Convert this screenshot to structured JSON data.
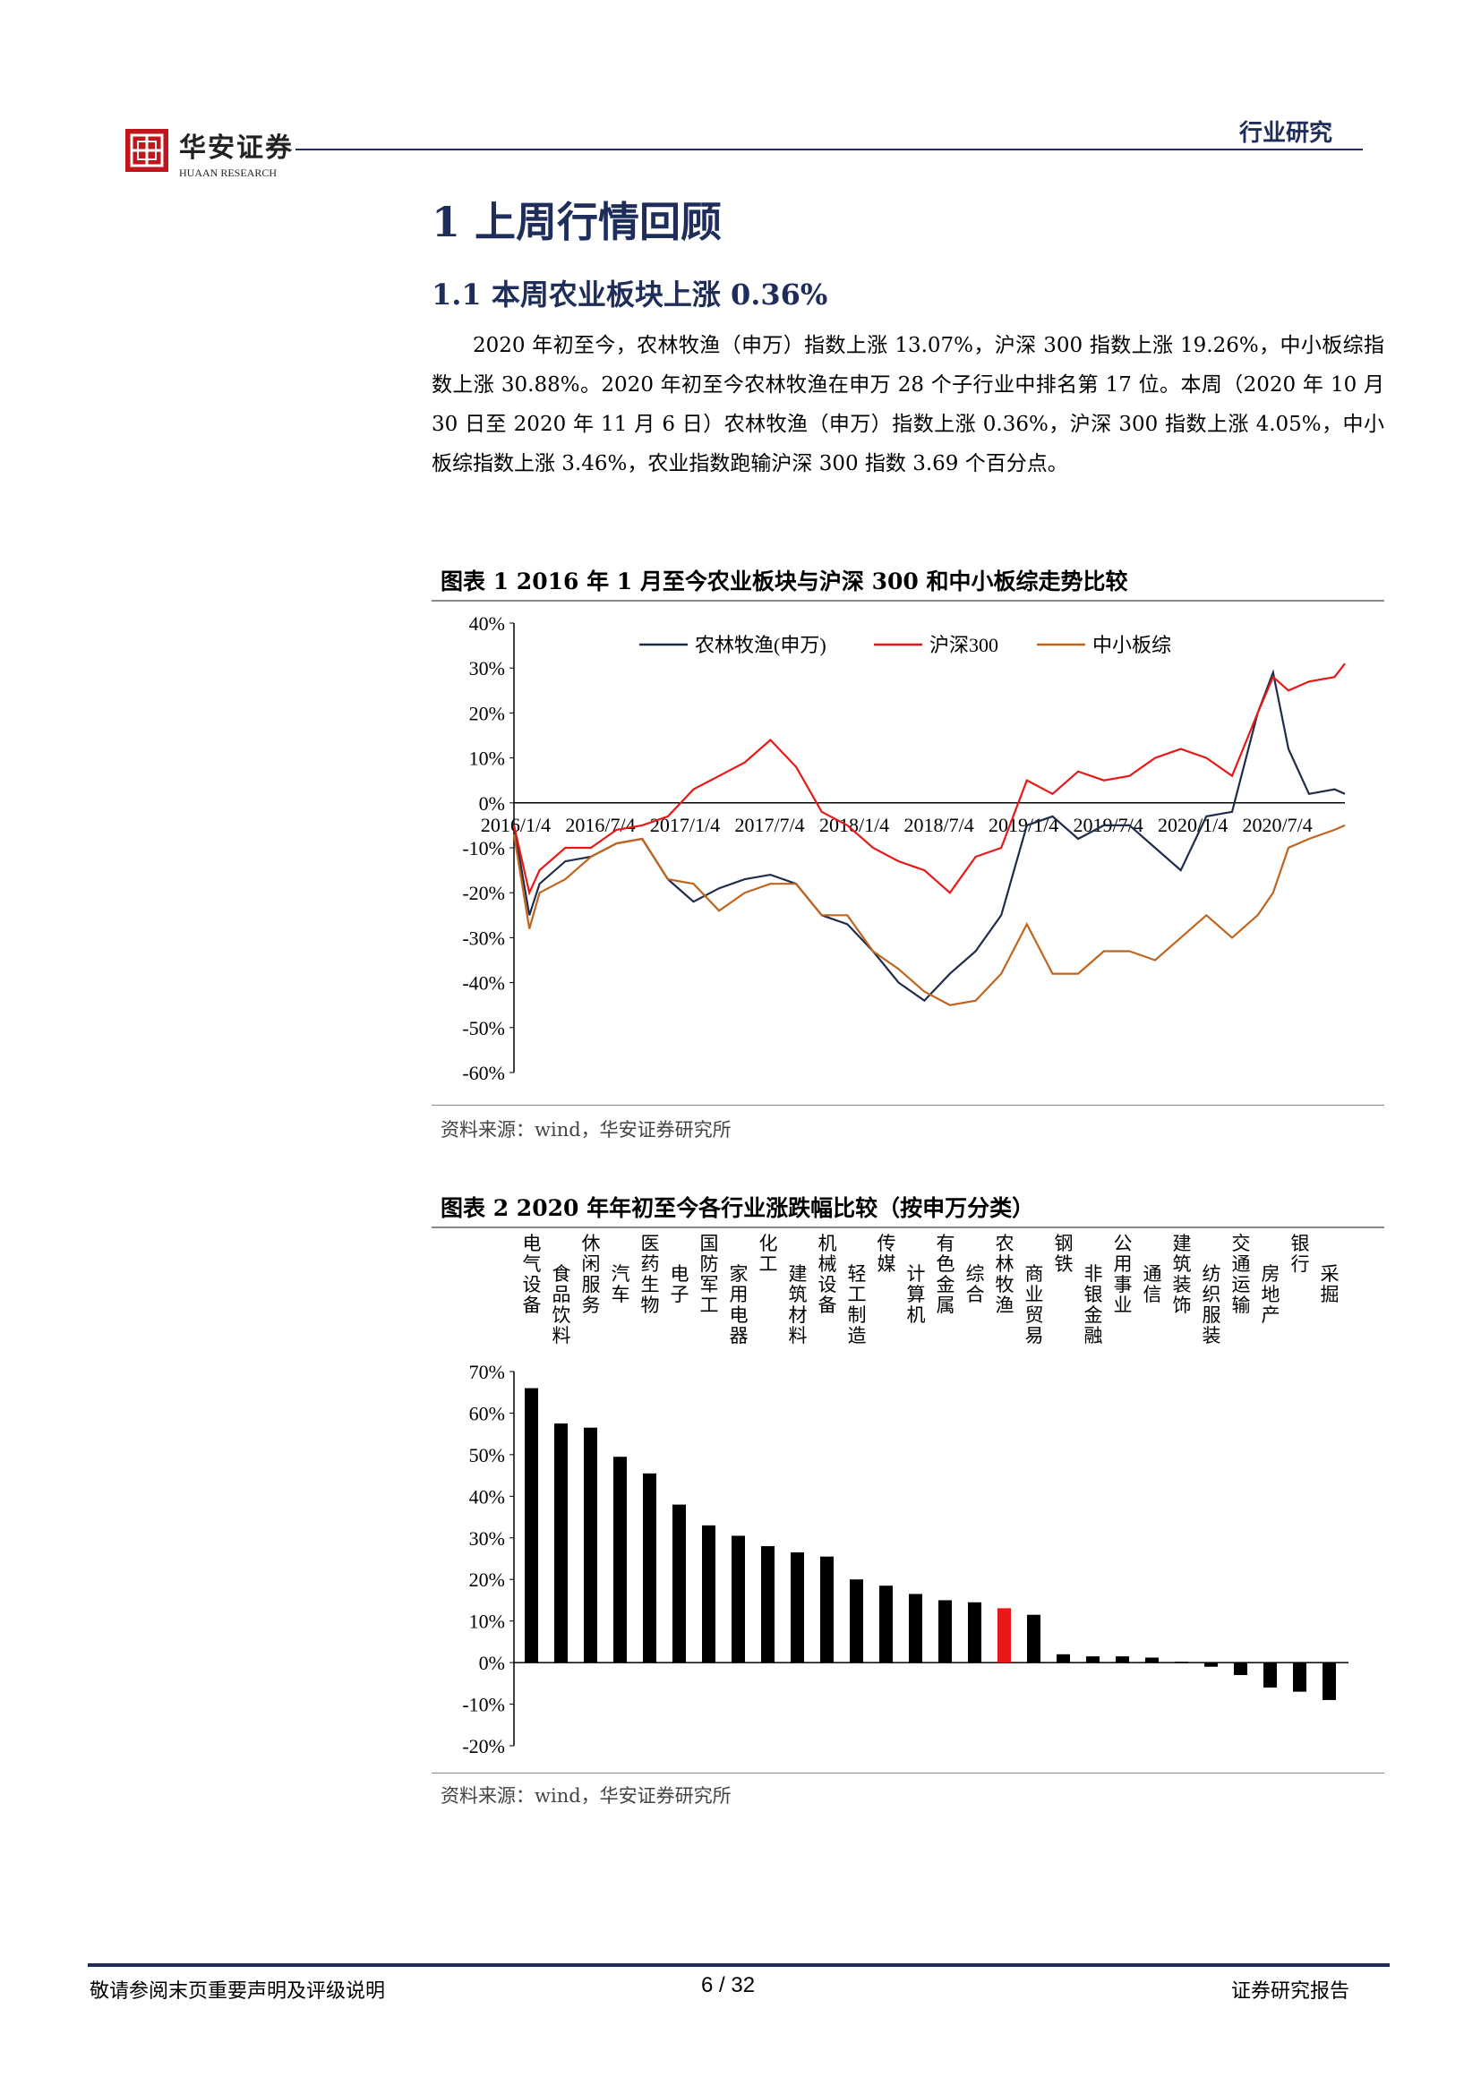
{
  "header": {
    "logo_cn": "华安证券",
    "logo_en": "HUAAN RESEARCH",
    "right_label": "行业研究",
    "brand_color": "#c0161c",
    "navy": "#1f2d5a"
  },
  "section": {
    "h1": "1 上周行情回顾",
    "h2": "1.1 本周农业板块上涨 0.36%",
    "paragraph": "2020 年初至今，农林牧渔（申万）指数上涨 13.07%，沪深 300 指数上涨 19.26%，中小板综指数上涨 30.88%。2020 年初至今农林牧渔在申万 28 个子行业中排名第 17 位。本周（2020 年 10 月 30 日至 2020 年 11 月 6 日）农林牧渔（申万）指数上涨 0.36%，沪深 300 指数上涨 4.05%，中小板综指数上涨 3.46%，农业指数跑输沪深 300 指数 3.69 个百分点。"
  },
  "figure1": {
    "title": "图表 1 2016 年 1 月至今农业板块与沪深 300 和中小板综走势比较",
    "source": "资料来源：wind，华安证券研究所"
  },
  "figure2": {
    "title": "图表 2 2020 年年初至今各行业涨跌幅比较（按申万分类）",
    "source": "资料来源：wind，华安证券研究所"
  },
  "footer": {
    "left": "敬请参阅末页重要声明及评级说明",
    "page": "6 / 32",
    "right": "证券研究报告"
  },
  "chart_data": [
    {
      "type": "line",
      "x_ticks": [
        "2016/1/4",
        "2016/7/4",
        "2017/1/4",
        "2017/7/4",
        "2018/1/4",
        "2018/7/4",
        "2019/1/4",
        "2019/7/4",
        "2020/1/4",
        "2020/7/4"
      ],
      "y_ticks": [
        "40%",
        "30%",
        "20%",
        "10%",
        "0%",
        "-10%",
        "-20%",
        "-30%",
        "-40%",
        "-50%",
        "-60%"
      ],
      "ylim": [
        -60,
        40
      ],
      "legend_position": "top",
      "series": [
        {
          "name": "农林牧渔(申万)",
          "color": "#1f2d4a",
          "values": [
            [
              0,
              -5
            ],
            [
              0.15,
              -25
            ],
            [
              0.25,
              -18
            ],
            [
              0.5,
              -13
            ],
            [
              0.75,
              -12
            ],
            [
              1,
              -9
            ],
            [
              1.25,
              -8
            ],
            [
              1.5,
              -17
            ],
            [
              1.75,
              -22
            ],
            [
              2,
              -19
            ],
            [
              2.25,
              -17
            ],
            [
              2.5,
              -16
            ],
            [
              2.75,
              -18
            ],
            [
              3,
              -25
            ],
            [
              3.25,
              -27
            ],
            [
              3.5,
              -33
            ],
            [
              3.75,
              -40
            ],
            [
              4,
              -44
            ],
            [
              4.25,
              -38
            ],
            [
              4.5,
              -33
            ],
            [
              4.75,
              -25
            ],
            [
              5,
              -5
            ],
            [
              5.25,
              -3
            ],
            [
              5.5,
              -8
            ],
            [
              5.75,
              -5
            ],
            [
              6,
              -5
            ],
            [
              6.25,
              -10
            ],
            [
              6.5,
              -15
            ],
            [
              6.75,
              -3
            ],
            [
              7,
              -2
            ],
            [
              7.25,
              20
            ],
            [
              7.4,
              29
            ],
            [
              7.55,
              12
            ],
            [
              7.75,
              2
            ],
            [
              8,
              3
            ],
            [
              8.1,
              2
            ]
          ]
        },
        {
          "name": "沪深300",
          "color": "#e81818",
          "values": [
            [
              0,
              -5
            ],
            [
              0.15,
              -20
            ],
            [
              0.25,
              -15
            ],
            [
              0.5,
              -10
            ],
            [
              0.75,
              -10
            ],
            [
              1,
              -6
            ],
            [
              1.25,
              -5
            ],
            [
              1.5,
              -3
            ],
            [
              1.75,
              3
            ],
            [
              2,
              6
            ],
            [
              2.25,
              9
            ],
            [
              2.5,
              14
            ],
            [
              2.75,
              8
            ],
            [
              3,
              -2
            ],
            [
              3.25,
              -5
            ],
            [
              3.5,
              -10
            ],
            [
              3.75,
              -13
            ],
            [
              4,
              -15
            ],
            [
              4.25,
              -20
            ],
            [
              4.5,
              -12
            ],
            [
              4.75,
              -10
            ],
            [
              5,
              5
            ],
            [
              5.25,
              2
            ],
            [
              5.5,
              7
            ],
            [
              5.75,
              5
            ],
            [
              6,
              6
            ],
            [
              6.25,
              10
            ],
            [
              6.5,
              12
            ],
            [
              6.75,
              10
            ],
            [
              7,
              6
            ],
            [
              7.25,
              20
            ],
            [
              7.4,
              28
            ],
            [
              7.55,
              25
            ],
            [
              7.75,
              27
            ],
            [
              8,
              28
            ],
            [
              8.1,
              31
            ]
          ]
        },
        {
          "name": "中小板综",
          "color": "#c0641e",
          "values": [
            [
              0,
              -7
            ],
            [
              0.15,
              -28
            ],
            [
              0.25,
              -20
            ],
            [
              0.5,
              -17
            ],
            [
              0.75,
              -12
            ],
            [
              1,
              -9
            ],
            [
              1.25,
              -8
            ],
            [
              1.5,
              -17
            ],
            [
              1.75,
              -18
            ],
            [
              2,
              -24
            ],
            [
              2.25,
              -20
            ],
            [
              2.5,
              -18
            ],
            [
              2.75,
              -18
            ],
            [
              3,
              -25
            ],
            [
              3.25,
              -25
            ],
            [
              3.5,
              -33
            ],
            [
              3.75,
              -37
            ],
            [
              4,
              -42
            ],
            [
              4.25,
              -45
            ],
            [
              4.5,
              -44
            ],
            [
              4.75,
              -38
            ],
            [
              5,
              -27
            ],
            [
              5.25,
              -38
            ],
            [
              5.5,
              -38
            ],
            [
              5.75,
              -33
            ],
            [
              6,
              -33
            ],
            [
              6.25,
              -35
            ],
            [
              6.5,
              -30
            ],
            [
              6.75,
              -25
            ],
            [
              7,
              -30
            ],
            [
              7.25,
              -25
            ],
            [
              7.4,
              -20
            ],
            [
              7.55,
              -10
            ],
            [
              7.75,
              -8
            ],
            [
              8,
              -6
            ],
            [
              8.1,
              -5
            ]
          ]
        }
      ]
    },
    {
      "type": "bar",
      "categories": [
        "电气设备",
        "食品饮料",
        "休闲服务",
        "汽车",
        "医药生物",
        "电子",
        "国防军工",
        "家用电器",
        "化工",
        "建筑材料",
        "机械设备",
        "轻工制造",
        "传媒",
        "计算机",
        "有色金属",
        "综合",
        "农林牧渔",
        "商业贸易",
        "钢铁",
        "非银金融",
        "公用事业",
        "通信",
        "建筑装饰",
        "纺织服装",
        "交通运输",
        "房地产",
        "银行",
        "采掘"
      ],
      "values": [
        66,
        57.5,
        56.5,
        49.5,
        45.5,
        38,
        33,
        30.5,
        28,
        26.5,
        25.5,
        20,
        18.5,
        16.5,
        15,
        14.5,
        13.07,
        11.5,
        2,
        1.5,
        1.5,
        1.2,
        0.2,
        -1,
        -3,
        -6,
        -7,
        -9
      ],
      "highlight_index": 16,
      "highlight_color": "#e81818",
      "bar_color": "#000000",
      "y_ticks": [
        "70%",
        "60%",
        "50%",
        "40%",
        "30%",
        "20%",
        "10%",
        "0%",
        "-10%",
        "-20%"
      ],
      "ylim": [
        -20,
        70
      ]
    }
  ]
}
